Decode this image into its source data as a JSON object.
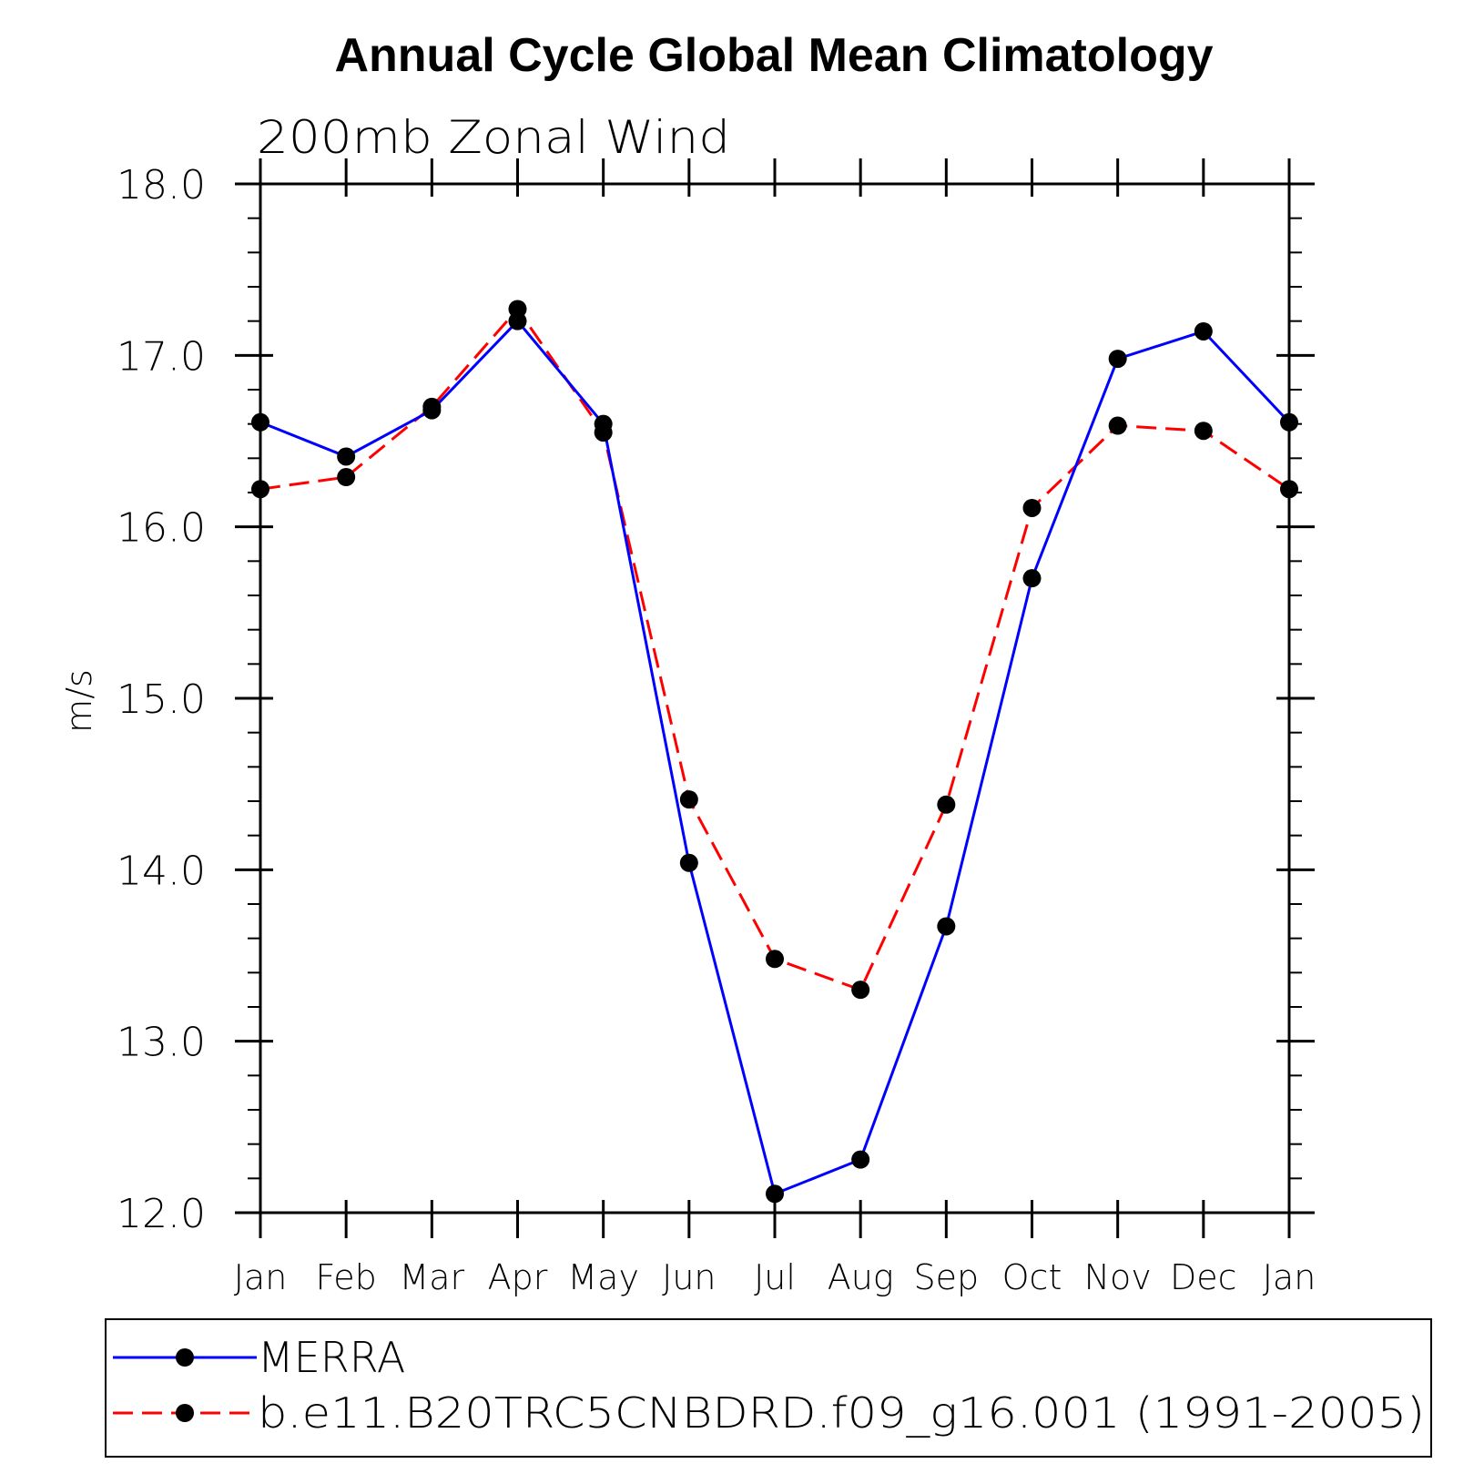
{
  "chart_data": {
    "type": "line",
    "title": "Annual Cycle Global Mean Climatology",
    "subtitle": "200mb Zonal Wind",
    "xlabel": "",
    "ylabel": "m/s",
    "categories": [
      "Jan",
      "Feb",
      "Mar",
      "Apr",
      "May",
      "Jun",
      "Jul",
      "Aug",
      "Sep",
      "Oct",
      "Nov",
      "Dec",
      "Jan"
    ],
    "ylim": [
      12.0,
      18.0
    ],
    "y_ticks": [
      "12.0",
      "13.0",
      "14.0",
      "15.0",
      "16.0",
      "17.0",
      "18.0"
    ],
    "y_tick_values": [
      12,
      13,
      14,
      15,
      16,
      17,
      18
    ],
    "y_minor_step": 0.2,
    "grid": false,
    "legend_position": "bottom",
    "series": [
      {
        "name": "MERRA",
        "color": "#0000ff",
        "style": "solid",
        "marker": "circle",
        "values": [
          16.61,
          16.41,
          16.68,
          17.2,
          16.6,
          14.04,
          12.11,
          12.31,
          13.67,
          15.7,
          16.98,
          17.14,
          16.61
        ]
      },
      {
        "name": "b.e11.B20TRC5CNBDRD.f09_g16.001 (1991-2005)",
        "color": "#ff0000",
        "style": "dashed",
        "marker": "circle",
        "values": [
          16.22,
          16.29,
          16.7,
          17.27,
          16.55,
          14.41,
          13.48,
          13.3,
          14.38,
          16.11,
          16.59,
          16.56,
          16.22
        ]
      }
    ]
  }
}
